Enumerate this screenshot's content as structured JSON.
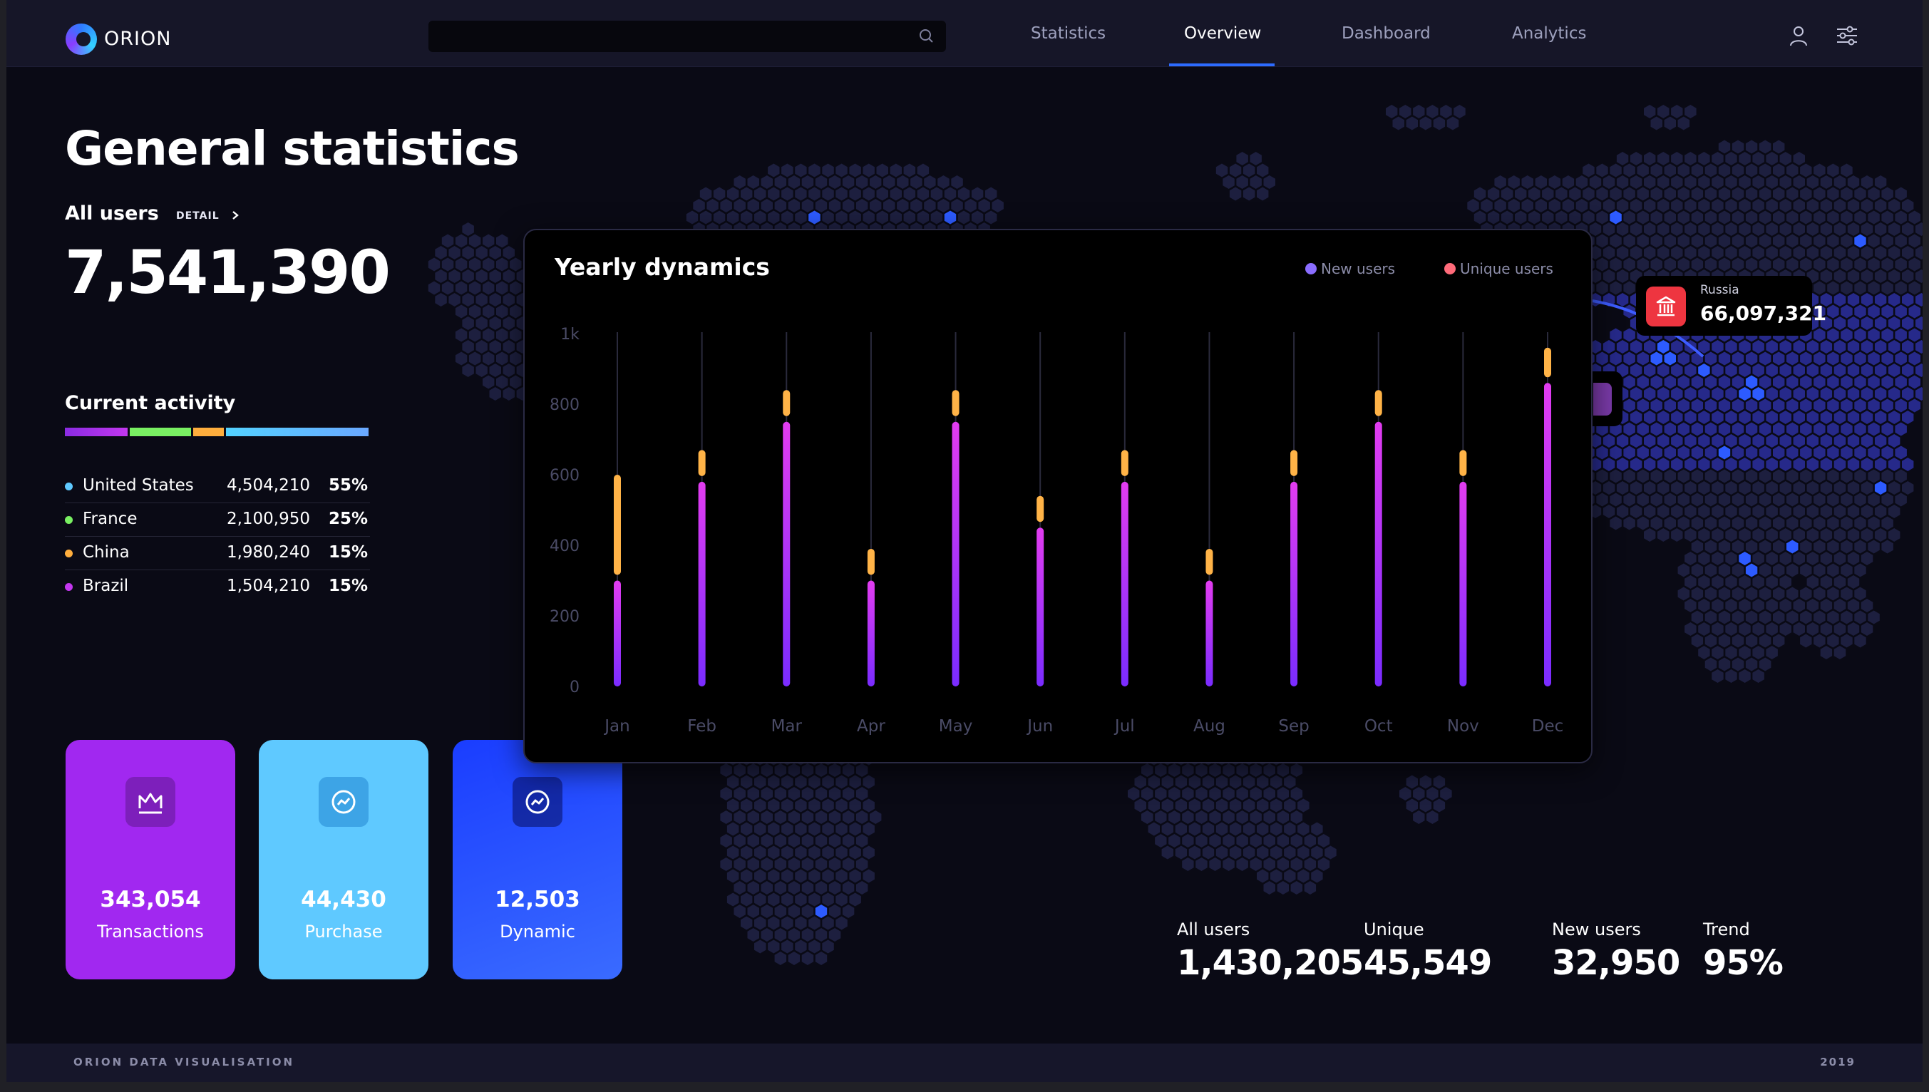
{
  "app": {
    "name": "ORION"
  },
  "nav": {
    "items": [
      "Statistics",
      "Overview",
      "Dashboard",
      "Analytics"
    ],
    "active": "Overview"
  },
  "search": {
    "placeholder": ""
  },
  "main": {
    "title": "General statistics",
    "all_users_label": "All users",
    "detail_label": "DETAIL",
    "total_users": "7,541,390"
  },
  "activity": {
    "title": "Current activity",
    "bar_colors": [
      "#b03cff",
      "#79f062",
      "#ffae3d",
      "#5fc9ff"
    ],
    "rows": [
      {
        "country": "United States",
        "value": "4,504,210",
        "percent": "55%",
        "color": "#5fc9ff"
      },
      {
        "country": "France",
        "value": "2,100,950",
        "percent": "25%",
        "color": "#79f062"
      },
      {
        "country": "China",
        "value": "1,980,240",
        "percent": "15%",
        "color": "#ffae3d"
      },
      {
        "country": "Brazil",
        "value": "1,504,210",
        "percent": "15%",
        "color": "#c337ef"
      }
    ]
  },
  "cards": [
    {
      "value": "343,054",
      "label": "Transactions",
      "icon": "crown-icon",
      "color": "#a128f0"
    },
    {
      "value": "44,430",
      "label": "Purchase",
      "icon": "trend-circle-icon",
      "color": "#5fc9ff"
    },
    {
      "value": "12,503",
      "label": "Dynamic",
      "icon": "trend-circle-icon",
      "color": "#1a3dff"
    }
  ],
  "chart": {
    "title": "Yearly dynamics",
    "legend": [
      {
        "name": "New users",
        "color": "#8a6dff"
      },
      {
        "name": "Unique users",
        "color": "#ff6b7a"
      }
    ]
  },
  "chart_data": {
    "type": "bar",
    "title": "Yearly dynamics",
    "categories": [
      "Jan",
      "Feb",
      "Mar",
      "Apr",
      "May",
      "Jun",
      "Jul",
      "Aug",
      "Sep",
      "Oct",
      "Nov",
      "Dec"
    ],
    "y_tick_labels": [
      "0",
      "200",
      "400",
      "600",
      "800",
      "1k"
    ],
    "ylim": [
      0,
      1000
    ],
    "series": [
      {
        "name": "New users",
        "values": [
          300,
          580,
          750,
          300,
          750,
          450,
          580,
          300,
          580,
          750,
          580,
          860
        ],
        "color": "#a62dff"
      },
      {
        "name": "Unique users",
        "values": [
          300,
          90,
          90,
          90,
          90,
          90,
          90,
          90,
          90,
          90,
          90,
          100
        ],
        "color": "#ffb347"
      }
    ],
    "stacked": true,
    "grid": false,
    "legend_position": "top-right"
  },
  "map": {
    "tooltip": {
      "label": "Russia",
      "value": "66,097,321",
      "icon": "bank-icon",
      "color": "#ee3540"
    }
  },
  "stats": [
    {
      "label": "All users",
      "value": "1,430,205"
    },
    {
      "label": "Unique",
      "value": "45,549"
    },
    {
      "label": "New users",
      "value": "32,950"
    },
    {
      "label": "Trend",
      "value": "95%"
    }
  ],
  "footer": {
    "left": "ORION DATA VISUALISATION",
    "right": "2019"
  }
}
